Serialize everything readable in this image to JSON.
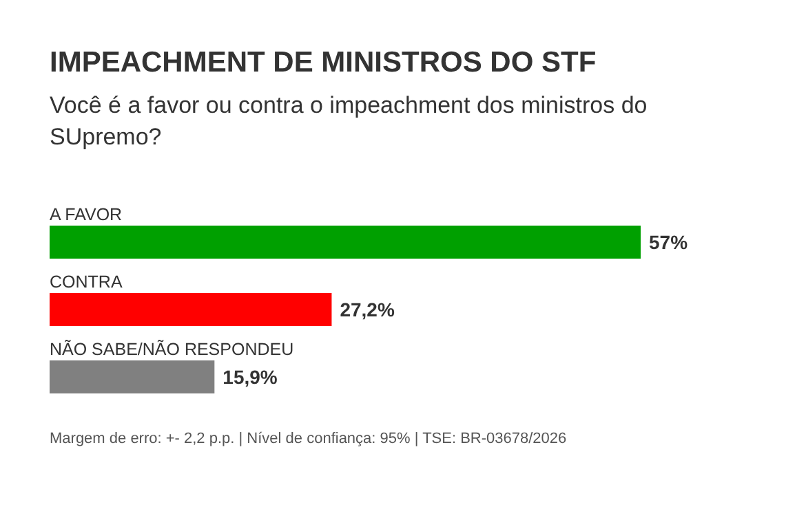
{
  "chart_data": {
    "type": "bar",
    "orientation": "horizontal",
    "title": "IMPEACHMENT DE MINISTROS DO STF",
    "subtitle": "Você é a favor ou contra o impeachment dos ministros do SUpremo?",
    "categories": [
      "A FAVOR",
      "CONTRA",
      "NÃO SABE/NÃO RESPONDEU"
    ],
    "values": [
      57,
      27.2,
      15.9
    ],
    "colors": [
      "#00a000",
      "#ff0000",
      "#808080"
    ],
    "value_labels": [
      "57%",
      "27,2%",
      "15,9%"
    ],
    "annotations": [
      "Margem de erro: +- 2,2 p.p. | Nível de confiança: 95% | TSE: BR-03678/2026"
    ]
  }
}
